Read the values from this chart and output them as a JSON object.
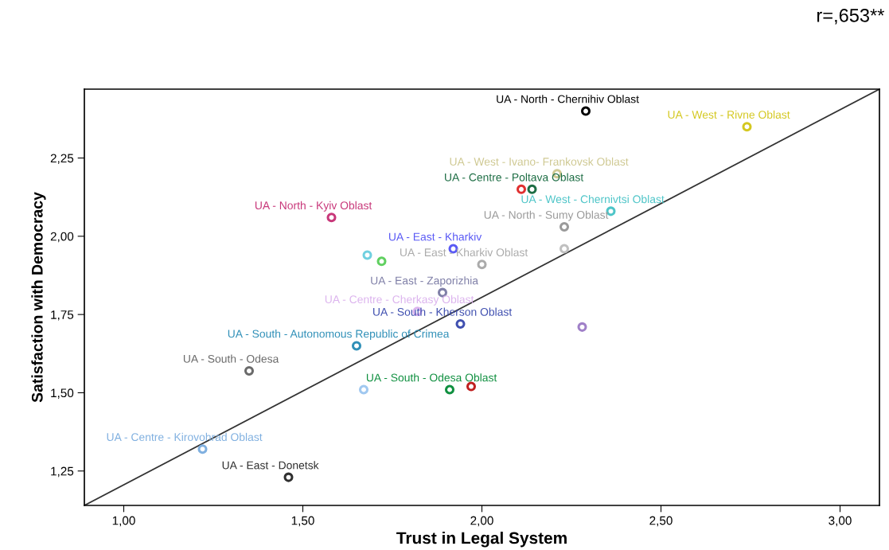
{
  "chart_data": {
    "type": "scatter",
    "xlabel": "Trust in Legal System",
    "ylabel": "Satisfaction with Democracy",
    "annotations": [
      "r=,653**"
    ],
    "xlim": [
      0.89,
      3.11
    ],
    "ylim": [
      1.14,
      2.47
    ],
    "xticks": [
      {
        "value": 1.0,
        "label": "1,00"
      },
      {
        "value": 1.5,
        "label": "1,50"
      },
      {
        "value": 2.0,
        "label": "2,00"
      },
      {
        "value": 2.5,
        "label": "2,50"
      },
      {
        "value": 3.0,
        "label": "3,00"
      }
    ],
    "yticks": [
      {
        "value": 1.25,
        "label": "1,25"
      },
      {
        "value": 1.5,
        "label": "1,50"
      },
      {
        "value": 1.75,
        "label": "1,75"
      },
      {
        "value": 2.0,
        "label": "2,00"
      },
      {
        "value": 2.25,
        "label": "2,25"
      }
    ],
    "grid": false,
    "legend": false,
    "marker": "circle",
    "series": [
      {
        "type": "line",
        "color": "#333333",
        "x": [
          0.89,
          3.11
        ],
        "values": [
          1.14,
          2.47
        ],
        "marker": "none"
      },
      {
        "name": "UA - North - Chernihiv Oblast",
        "color": "#000000",
        "x": [
          2.29
        ],
        "values": [
          2.4
        ]
      },
      {
        "name": "UA - West - Rivne Oblast",
        "color": "#d4c820",
        "x": [
          2.74
        ],
        "values": [
          2.35
        ]
      },
      {
        "name": "UA - West - Ivano- Frankovsk Oblast",
        "color": "#cfc993",
        "x": [
          2.21
        ],
        "values": [
          2.2
        ]
      },
      {
        "name": "UA - Centre - Poltava Oblast",
        "color": "#1e6e45",
        "x": [
          2.14
        ],
        "values": [
          2.15
        ]
      },
      {
        "name": "UA - West - Chernivtsi Oblast",
        "color": "#4ec5c8",
        "x": [
          2.36
        ],
        "values": [
          2.08
        ]
      },
      {
        "name": "UA - North - Sumy Oblast",
        "color": "#9a9a9a",
        "x": [
          2.23
        ],
        "values": [
          2.03
        ]
      },
      {
        "name": "UA - North - Kyiv Oblast",
        "color": "#c8387a",
        "x": [
          1.58
        ],
        "values": [
          2.06
        ]
      },
      {
        "name": "UA - East - Kharkiv",
        "color": "#5a5af5",
        "x": [
          1.92
        ],
        "values": [
          1.96
        ]
      },
      {
        "name": "UA - East - Kharkiv Oblast",
        "color": "#ababab",
        "x": [
          2.0
        ],
        "values": [
          1.91
        ]
      },
      {
        "name": "UA - East - Zaporizhia",
        "color": "#8080a8",
        "x": [
          1.89
        ],
        "values": [
          1.82
        ]
      },
      {
        "name": "UA - Centre - Cherkasy Oblast",
        "color": "#dcb4ee",
        "x": [
          1.82
        ],
        "values": [
          1.76
        ]
      },
      {
        "name": "UA - South - Kherson Oblast",
        "color": "#4050b0",
        "x": [
          1.94
        ],
        "values": [
          1.72
        ]
      },
      {
        "name": "UA - South - Autonomous Republic of Crimea",
        "color": "#3090b8",
        "x": [
          1.65
        ],
        "values": [
          1.65
        ]
      },
      {
        "name": "UA - South - Odesa",
        "color": "#6a6a6a",
        "x": [
          1.35
        ],
        "values": [
          1.57
        ]
      },
      {
        "name": "UA - South - Odesa Oblast",
        "color": "#109040",
        "x": [
          1.91
        ],
        "values": [
          1.51
        ]
      },
      {
        "name": "UA - Centre - Kirovohrad Oblast",
        "color": "#80b0e0",
        "x": [
          1.22
        ],
        "values": [
          1.32
        ]
      },
      {
        "name": "UA - East - Donetsk",
        "color": "#303030",
        "x": [
          1.46
        ],
        "values": [
          1.23
        ]
      },
      {
        "color": "#e03030",
        "x": [
          2.11
        ],
        "values": [
          2.15
        ]
      },
      {
        "color": "#70d0e0",
        "x": [
          1.68
        ],
        "values": [
          1.94
        ]
      },
      {
        "color": "#60d060",
        "x": [
          1.72
        ],
        "values": [
          1.92
        ]
      },
      {
        "color": "#a080c8",
        "x": [
          2.28
        ],
        "values": [
          1.71
        ]
      },
      {
        "color": "#a0c8f0",
        "x": [
          1.67
        ],
        "values": [
          1.51
        ]
      },
      {
        "color": "#c02020",
        "x": [
          1.97
        ],
        "values": [
          1.52
        ]
      },
      {
        "color": "#c0c0c0",
        "x": [
          2.23
        ],
        "values": [
          1.96
        ]
      }
    ]
  }
}
